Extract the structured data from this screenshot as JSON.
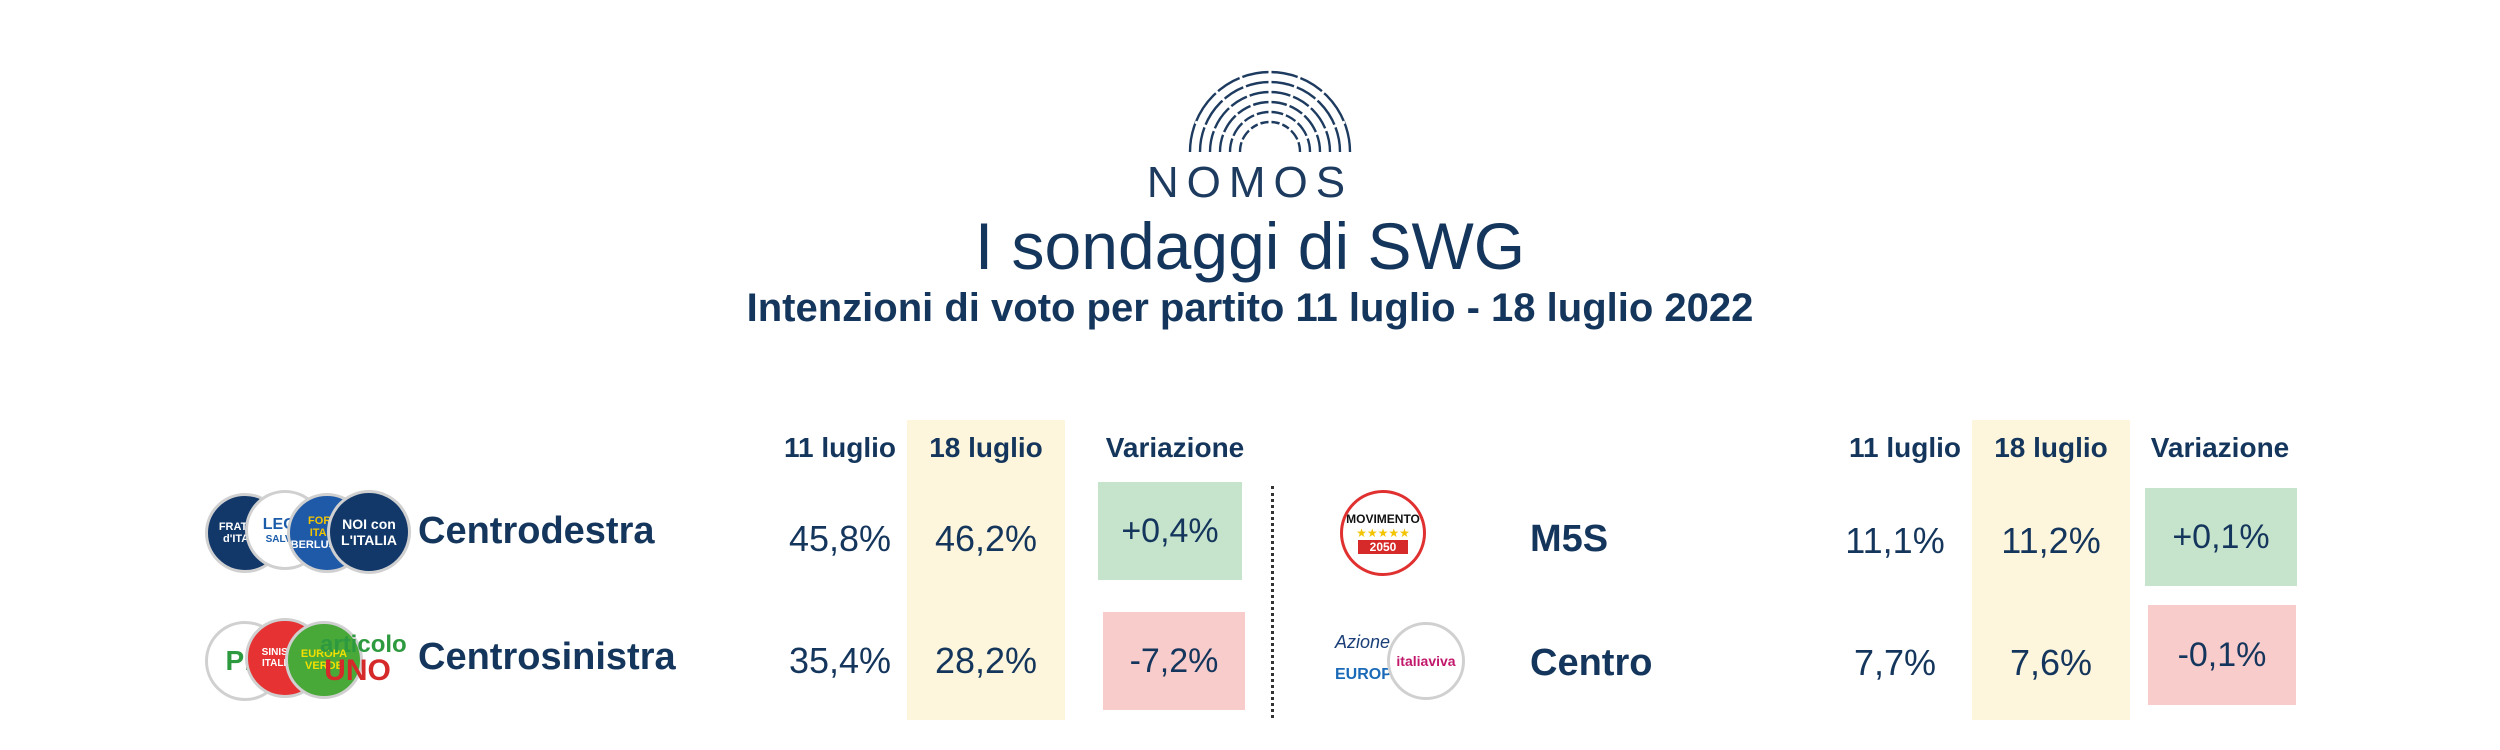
{
  "header": {
    "brand": "NOMOS",
    "title": "I sondaggi di SWG",
    "subtitle": "Intenzioni di voto per partito 11 luglio - 18 luglio 2022"
  },
  "columns": {
    "prev": "11 luglio",
    "curr": "18 luglio",
    "change": "Variazione"
  },
  "left_rows": [
    {
      "party": "Centrodestra",
      "prev": "45,8%",
      "curr": "46,2%",
      "change": "+0,4%",
      "trend": "up"
    },
    {
      "party": "Centrosinistra",
      "prev": "35,4%",
      "curr": "28,2%",
      "change": "-7,2%",
      "trend": "down"
    }
  ],
  "right_rows": [
    {
      "party": "M5S",
      "prev": "11,1%",
      "curr": "11,2%",
      "change": "+0,1%",
      "trend": "up"
    },
    {
      "party": "Centro",
      "prev": "7,7%",
      "curr": "7,6%",
      "change": "-0,1%",
      "trend": "down"
    }
  ],
  "logos": {
    "fdi": "FRATELLI d'ITALIA",
    "lega": "LEGA",
    "lega_sub": "SALVINI",
    "fi": "FORZA ITALIA",
    "fi_sub": "BERLUSCONI",
    "noi": "NOI con L'ITALIA",
    "pd": "PD",
    "si": "SINISTRA ITALIANA",
    "verdi": "EUROPA VERDE",
    "art1_a": "articolo",
    "art1_b": "UNO",
    "m5s": "MOVIMENTO",
    "m5s_year": "2050",
    "azione": "Azione",
    "europa": "EUROPA",
    "iv": "italiaviva"
  },
  "colors": {
    "navy": "#15365c",
    "highlight": "#fdf6dc",
    "positive": "#c6e3cc",
    "negative": "#f9cccc"
  }
}
